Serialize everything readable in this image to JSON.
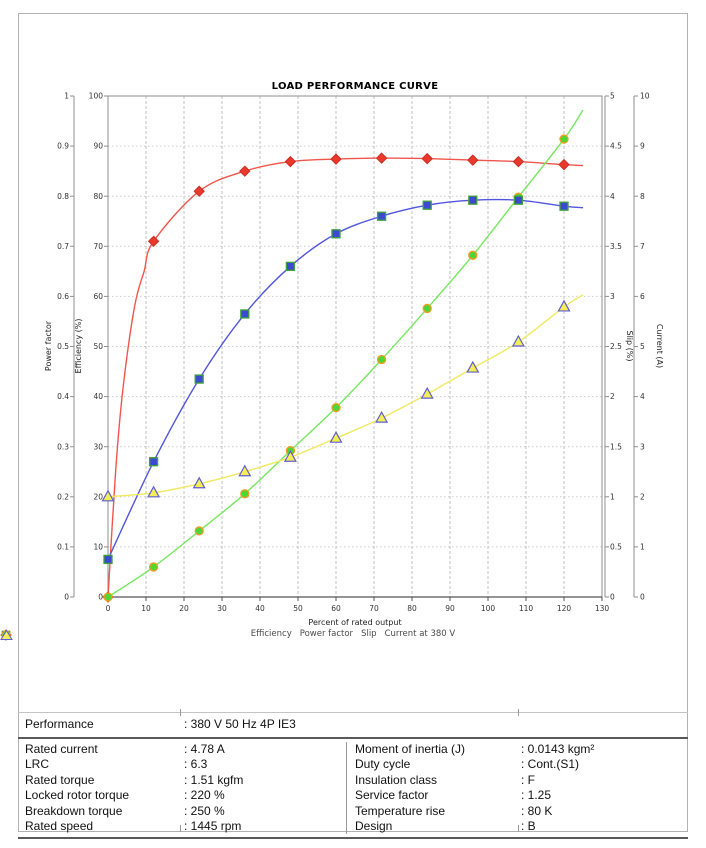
{
  "chart_data": {
    "type": "line",
    "title": "LOAD PERFORMANCE CURVE",
    "xlabel": "Percent of rated output",
    "x_axis": {
      "min": 0,
      "max": 130,
      "step": 10
    },
    "y_axes": [
      {
        "id": "power_factor",
        "title": "Power factor",
        "min": 0,
        "max": 1,
        "step": 0.1
      },
      {
        "id": "efficiency",
        "title": "Efficiency (%)",
        "min": 0,
        "max": 100,
        "step": 10
      },
      {
        "id": "slip",
        "title": "Slip (%)",
        "min": 0,
        "max": 5,
        "step": 0.5
      },
      {
        "id": "current",
        "title": "Current (A)",
        "min": 0,
        "max": 10,
        "step": 1
      }
    ],
    "x": [
      0,
      12,
      24,
      36,
      48,
      60,
      72,
      84,
      96,
      108,
      120
    ],
    "series": [
      {
        "name": "Efficiency",
        "axis": "efficiency",
        "marker": "diamond",
        "color": "#e8392c",
        "marker_stroke": "#cf2d23",
        "line_color": "#f0564b",
        "values": [
          0,
          71,
          81,
          85,
          86.9,
          87.4,
          87.6,
          87.5,
          87.2,
          86.9,
          86.3
        ],
        "shape_x": [
          0,
          2,
          4,
          7,
          9.5,
          12,
          24,
          36,
          48,
          60,
          72,
          84,
          96,
          108,
          120,
          125
        ],
        "shape_values": [
          0,
          25,
          42,
          58,
          65,
          71,
          81,
          85,
          86.9,
          87.4,
          87.6,
          87.5,
          87.2,
          86.9,
          86.3,
          86.1
        ]
      },
      {
        "name": "Power factor",
        "axis": "power_factor",
        "marker": "square",
        "color": "#3c4ad2",
        "marker_stroke": "#3da23d",
        "line_color": "#5156dd",
        "values": [
          0.075,
          0.27,
          0.435,
          0.565,
          0.66,
          0.725,
          0.76,
          0.782,
          0.792,
          0.792,
          0.78
        ],
        "shape_x": [
          0,
          12,
          24,
          36,
          48,
          60,
          72,
          84,
          96,
          108,
          120,
          125
        ],
        "shape_values": [
          0.075,
          0.27,
          0.435,
          0.565,
          0.66,
          0.725,
          0.76,
          0.782,
          0.792,
          0.792,
          0.78,
          0.777
        ]
      },
      {
        "name": "Slip",
        "axis": "slip",
        "marker": "circle",
        "color": "#4ed636",
        "marker_stroke": "#f29c1f",
        "line_color": "#76e75f",
        "values": [
          0,
          0.3,
          0.66,
          1.03,
          1.46,
          1.89,
          2.37,
          2.88,
          3.41,
          3.99,
          4.57
        ],
        "shape_x": [
          0,
          12,
          24,
          36,
          48,
          60,
          72,
          84,
          96,
          108,
          120,
          125
        ],
        "shape_values": [
          0,
          0.3,
          0.66,
          1.03,
          1.46,
          1.89,
          2.37,
          2.88,
          3.41,
          3.99,
          4.57,
          4.86
        ]
      },
      {
        "name": "Current at 380 V",
        "axis": "current",
        "marker": "triangle",
        "color": "#f6ee55",
        "marker_stroke": "#5f5fd3",
        "line_color": "#f1e95e",
        "values": [
          2.0,
          2.08,
          2.26,
          2.5,
          2.79,
          3.17,
          3.57,
          4.05,
          4.57,
          5.09,
          5.79
        ],
        "shape_x": [
          0,
          12,
          24,
          36,
          48,
          60,
          72,
          84,
          96,
          108,
          120,
          125
        ],
        "shape_values": [
          2.0,
          2.08,
          2.26,
          2.5,
          2.79,
          3.17,
          3.57,
          4.05,
          4.57,
          5.09,
          5.79,
          6.03
        ]
      }
    ],
    "grid": true,
    "legend_position": "bottom"
  },
  "table": {
    "performance": {
      "label": "Performance",
      "value": ": 380 V 50 Hz 4P IE3"
    },
    "rows": [
      {
        "l_label": "Rated current",
        "l_value": ": 4.78 A",
        "r_label": "Moment of inertia (J)",
        "r_value": ": 0.0143 kgm²"
      },
      {
        "l_label": "LRC",
        "l_value": ": 6.3",
        "r_label": "Duty cycle",
        "r_value": ": Cont.(S1)"
      },
      {
        "l_label": "Rated torque",
        "l_value": ": 1.51 kgfm",
        "r_label": "Insulation class",
        "r_value": ": F"
      },
      {
        "l_label": "Locked rotor torque",
        "l_value": ": 220 %",
        "r_label": "Service factor",
        "r_value": ": 1.25"
      },
      {
        "l_label": "Breakdown torque",
        "l_value": ": 250 %",
        "r_label": "Temperature rise",
        "r_value": ": 80 K"
      },
      {
        "l_label": "Rated speed",
        "l_value": ": 1445 rpm",
        "r_label": "Design",
        "r_value": ": B"
      }
    ]
  }
}
